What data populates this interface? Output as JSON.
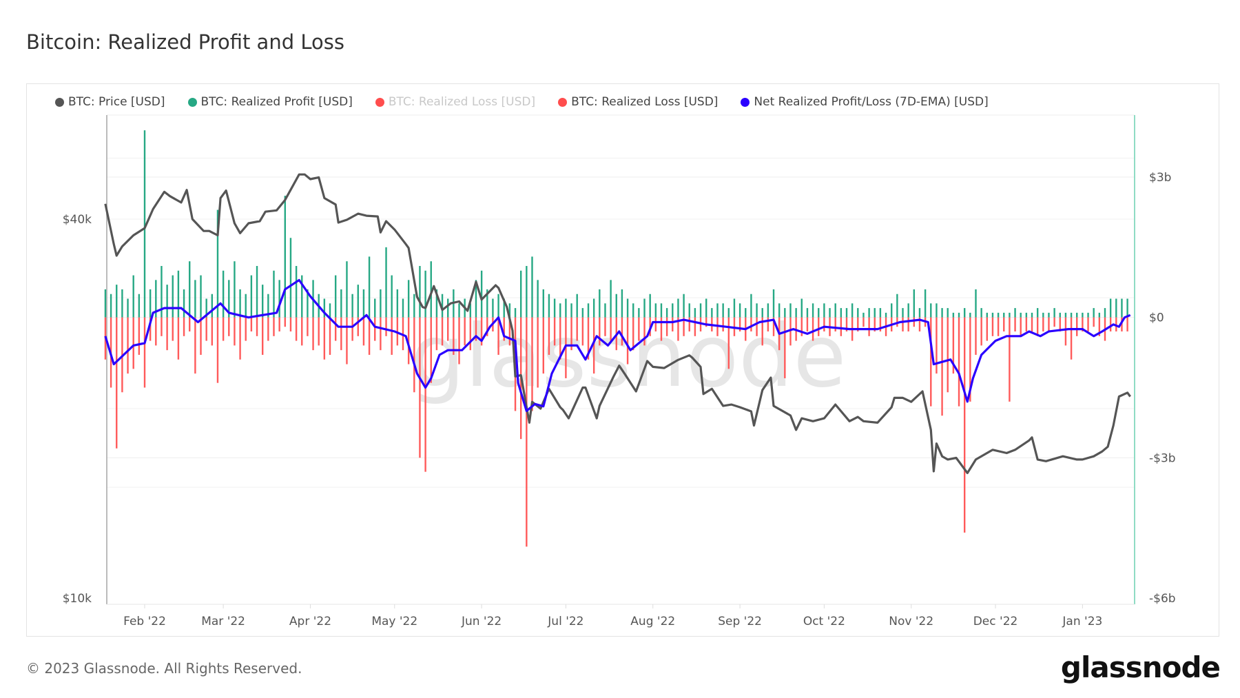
{
  "title": "Bitcoin: Realized Profit and Loss",
  "legend": [
    {
      "label": "BTC: Price [USD]",
      "color": "#555555",
      "enabled": true
    },
    {
      "label": "BTC: Realized Profit [USD]",
      "color": "#26a884",
      "enabled": true
    },
    {
      "label": "BTC: Realized Loss [USD]",
      "color": "#ff4d4d",
      "enabled": false
    },
    {
      "label": "BTC: Realized Loss [USD]",
      "color": "#ff4d4d",
      "enabled": true
    },
    {
      "label": "Net Realized Profit/Loss (7D-EMA) [USD]",
      "color": "#2a00ff",
      "enabled": true
    }
  ],
  "watermark": "glassnode",
  "footer": {
    "copyright": "© 2023 Glassnode. All Rights Reserved.",
    "logo": "glassnode"
  },
  "chart_data": {
    "type": "bar+line",
    "title": "Bitcoin: Realized Profit and Loss",
    "x_ticks": [
      {
        "date": "2022-02-01",
        "label": "Feb '22"
      },
      {
        "date": "2022-03-01",
        "label": "Mar '22"
      },
      {
        "date": "2022-04-01",
        "label": "Apr '22"
      },
      {
        "date": "2022-05-01",
        "label": "May '22"
      },
      {
        "date": "2022-06-01",
        "label": "Jun '22"
      },
      {
        "date": "2022-07-01",
        "label": "Jul '22"
      },
      {
        "date": "2022-08-01",
        "label": "Aug '22"
      },
      {
        "date": "2022-09-01",
        "label": "Sep '22"
      },
      {
        "date": "2022-10-01",
        "label": "Oct '22"
      },
      {
        "date": "2022-11-01",
        "label": "Nov '22"
      },
      {
        "date": "2022-12-01",
        "label": "Dec '22"
      },
      {
        "date": "2023-01-01",
        "label": "Jan '23"
      }
    ],
    "xlim": [
      "2022-01-18",
      "2023-01-19"
    ],
    "left_axis": {
      "scale": "log",
      "ticks": [
        {
          "value": 40000,
          "label": "$40k"
        },
        {
          "value": 10000,
          "label": "$10k"
        }
      ]
    },
    "right_axis": {
      "scale": "linear",
      "unit": "billion USD",
      "ylim": [
        -6,
        3
      ],
      "ticks": [
        {
          "value": 3,
          "label": "$3b"
        },
        {
          "value": 0,
          "label": "$0"
        },
        {
          "value": -3,
          "label": "-$3b"
        },
        {
          "value": -6,
          "label": "-$6b"
        }
      ]
    },
    "grid": true,
    "price": [
      [
        "2022-01-18",
        42300
      ],
      [
        "2022-01-21",
        36500
      ],
      [
        "2022-01-22",
        35000
      ],
      [
        "2022-01-24",
        36200
      ],
      [
        "2022-01-28",
        37700
      ],
      [
        "2022-02-01",
        38700
      ],
      [
        "2022-02-04",
        41500
      ],
      [
        "2022-02-08",
        44200
      ],
      [
        "2022-02-10",
        43500
      ],
      [
        "2022-02-14",
        42500
      ],
      [
        "2022-02-16",
        44500
      ],
      [
        "2022-02-18",
        40000
      ],
      [
        "2022-02-22",
        38300
      ],
      [
        "2022-02-24",
        38300
      ],
      [
        "2022-02-27",
        37700
      ],
      [
        "2022-02-28",
        43200
      ],
      [
        "2022-03-02",
        44400
      ],
      [
        "2022-03-05",
        39400
      ],
      [
        "2022-03-07",
        38000
      ],
      [
        "2022-03-10",
        39400
      ],
      [
        "2022-03-14",
        39700
      ],
      [
        "2022-03-16",
        41100
      ],
      [
        "2022-03-20",
        41300
      ],
      [
        "2022-03-23",
        42900
      ],
      [
        "2022-03-28",
        47100
      ],
      [
        "2022-03-30",
        47100
      ],
      [
        "2022-04-01",
        46300
      ],
      [
        "2022-04-04",
        46600
      ],
      [
        "2022-04-06",
        43200
      ],
      [
        "2022-04-10",
        42200
      ],
      [
        "2022-04-11",
        39500
      ],
      [
        "2022-04-14",
        39900
      ],
      [
        "2022-04-18",
        40800
      ],
      [
        "2022-04-21",
        40500
      ],
      [
        "2022-04-25",
        40400
      ],
      [
        "2022-04-26",
        38100
      ],
      [
        "2022-04-28",
        39700
      ],
      [
        "2022-05-01",
        38500
      ],
      [
        "2022-05-05",
        36500
      ],
      [
        "2022-05-06",
        36000
      ],
      [
        "2022-05-09",
        30100
      ],
      [
        "2022-05-11",
        29000
      ],
      [
        "2022-05-12",
        28900
      ],
      [
        "2022-05-15",
        31300
      ],
      [
        "2022-05-18",
        28700
      ],
      [
        "2022-05-21",
        29400
      ],
      [
        "2022-05-24",
        29600
      ],
      [
        "2022-05-27",
        28600
      ],
      [
        "2022-05-30",
        31800
      ],
      [
        "2022-06-01",
        29800
      ],
      [
        "2022-06-06",
        31400
      ],
      [
        "2022-06-07",
        31100
      ],
      [
        "2022-06-10",
        29000
      ],
      [
        "2022-06-12",
        26600
      ],
      [
        "2022-06-13",
        22500
      ],
      [
        "2022-06-15",
        22600
      ],
      [
        "2022-06-18",
        19000
      ],
      [
        "2022-06-19",
        20500
      ],
      [
        "2022-06-22",
        20000
      ],
      [
        "2022-06-25",
        21500
      ],
      [
        "2022-06-29",
        20100
      ],
      [
        "2022-06-30",
        19900
      ],
      [
        "2022-07-02",
        19300
      ],
      [
        "2022-07-07",
        21600
      ],
      [
        "2022-07-08",
        21600
      ],
      [
        "2022-07-12",
        19300
      ],
      [
        "2022-07-13",
        20200
      ],
      [
        "2022-07-18",
        22500
      ],
      [
        "2022-07-20",
        23400
      ],
      [
        "2022-07-22",
        22700
      ],
      [
        "2022-07-26",
        21300
      ],
      [
        "2022-07-30",
        23800
      ],
      [
        "2022-08-01",
        23300
      ],
      [
        "2022-08-05",
        23200
      ],
      [
        "2022-08-10",
        23900
      ],
      [
        "2022-08-14",
        24300
      ],
      [
        "2022-08-15",
        24100
      ],
      [
        "2022-08-18",
        23300
      ],
      [
        "2022-08-19",
        21100
      ],
      [
        "2022-08-22",
        21500
      ],
      [
        "2022-08-26",
        20200
      ],
      [
        "2022-08-29",
        20300
      ],
      [
        "2022-09-01",
        20100
      ],
      [
        "2022-09-05",
        19800
      ],
      [
        "2022-09-06",
        18800
      ],
      [
        "2022-09-09",
        21400
      ],
      [
        "2022-09-12",
        22400
      ],
      [
        "2022-09-13",
        20200
      ],
      [
        "2022-09-19",
        19500
      ],
      [
        "2022-09-21",
        18500
      ],
      [
        "2022-09-23",
        19300
      ],
      [
        "2022-09-27",
        19100
      ],
      [
        "2022-10-01",
        19300
      ],
      [
        "2022-10-05",
        20300
      ],
      [
        "2022-10-10",
        19100
      ],
      [
        "2022-10-13",
        19400
      ],
      [
        "2022-10-15",
        19100
      ],
      [
        "2022-10-20",
        19000
      ],
      [
        "2022-10-25",
        20100
      ],
      [
        "2022-10-26",
        20800
      ],
      [
        "2022-10-29",
        20800
      ],
      [
        "2022-11-01",
        20500
      ],
      [
        "2022-11-05",
        21300
      ],
      [
        "2022-11-08",
        18500
      ],
      [
        "2022-11-09",
        15900
      ],
      [
        "2022-11-10",
        17600
      ],
      [
        "2022-11-12",
        16800
      ],
      [
        "2022-11-14",
        16600
      ],
      [
        "2022-11-17",
        16700
      ],
      [
        "2022-11-21",
        15800
      ],
      [
        "2022-11-24",
        16600
      ],
      [
        "2022-11-30",
        17200
      ],
      [
        "2022-12-05",
        17000
      ],
      [
        "2022-12-08",
        17200
      ],
      [
        "2022-12-13",
        17800
      ],
      [
        "2022-12-14",
        18000
      ],
      [
        "2022-12-16",
        16600
      ],
      [
        "2022-12-19",
        16500
      ],
      [
        "2022-12-25",
        16800
      ],
      [
        "2022-12-30",
        16600
      ],
      [
        "2023-01-01",
        16600
      ],
      [
        "2023-01-05",
        16800
      ],
      [
        "2023-01-08",
        17100
      ],
      [
        "2023-01-10",
        17400
      ],
      [
        "2023-01-12",
        18800
      ],
      [
        "2023-01-14",
        20900
      ],
      [
        "2023-01-17",
        21200
      ],
      [
        "2023-01-18",
        20900
      ]
    ],
    "net_realized_ema": [
      [
        "2022-01-18",
        -0.4
      ],
      [
        "2022-01-21",
        -1.0
      ],
      [
        "2022-01-28",
        -0.6
      ],
      [
        "2022-02-01",
        -0.55
      ],
      [
        "2022-02-04",
        0.1
      ],
      [
        "2022-02-08",
        0.2
      ],
      [
        "2022-02-14",
        0.2
      ],
      [
        "2022-02-20",
        -0.1
      ],
      [
        "2022-02-28",
        0.3
      ],
      [
        "2022-03-03",
        0.1
      ],
      [
        "2022-03-10",
        0.0
      ],
      [
        "2022-03-20",
        0.1
      ],
      [
        "2022-03-23",
        0.6
      ],
      [
        "2022-03-28",
        0.8
      ],
      [
        "2022-04-01",
        0.45
      ],
      [
        "2022-04-06",
        0.1
      ],
      [
        "2022-04-11",
        -0.2
      ],
      [
        "2022-04-16",
        -0.2
      ],
      [
        "2022-04-21",
        0.05
      ],
      [
        "2022-04-24",
        -0.2
      ],
      [
        "2022-05-01",
        -0.3
      ],
      [
        "2022-05-05",
        -0.4
      ],
      [
        "2022-05-09",
        -1.2
      ],
      [
        "2022-05-12",
        -1.5
      ],
      [
        "2022-05-14",
        -1.3
      ],
      [
        "2022-05-17",
        -0.8
      ],
      [
        "2022-05-20",
        -0.7
      ],
      [
        "2022-05-25",
        -0.7
      ],
      [
        "2022-05-30",
        -0.4
      ],
      [
        "2022-06-01",
        -0.5
      ],
      [
        "2022-06-04",
        -0.2
      ],
      [
        "2022-06-07",
        0.0
      ],
      [
        "2022-06-09",
        -0.4
      ],
      [
        "2022-06-13",
        -0.5
      ],
      [
        "2022-06-14",
        -1.4
      ],
      [
        "2022-06-17",
        -2.0
      ],
      [
        "2022-06-20",
        -1.85
      ],
      [
        "2022-06-23",
        -1.9
      ],
      [
        "2022-06-26",
        -1.2
      ],
      [
        "2022-07-01",
        -0.6
      ],
      [
        "2022-07-05",
        -0.6
      ],
      [
        "2022-07-08",
        -0.9
      ],
      [
        "2022-07-12",
        -0.4
      ],
      [
        "2022-07-16",
        -0.6
      ],
      [
        "2022-07-20",
        -0.3
      ],
      [
        "2022-07-24",
        -0.7
      ],
      [
        "2022-07-26",
        -0.6
      ],
      [
        "2022-07-30",
        -0.4
      ],
      [
        "2022-08-01",
        -0.1
      ],
      [
        "2022-08-08",
        -0.1
      ],
      [
        "2022-08-12",
        -0.05
      ],
      [
        "2022-08-20",
        -0.15
      ],
      [
        "2022-08-27",
        -0.2
      ],
      [
        "2022-09-03",
        -0.25
      ],
      [
        "2022-09-08",
        -0.1
      ],
      [
        "2022-09-13",
        -0.05
      ],
      [
        "2022-09-15",
        -0.35
      ],
      [
        "2022-09-20",
        -0.25
      ],
      [
        "2022-09-25",
        -0.35
      ],
      [
        "2022-10-01",
        -0.2
      ],
      [
        "2022-10-10",
        -0.25
      ],
      [
        "2022-10-20",
        -0.25
      ],
      [
        "2022-10-28",
        -0.1
      ],
      [
        "2022-11-04",
        -0.05
      ],
      [
        "2022-11-07",
        -0.1
      ],
      [
        "2022-11-09",
        -1.0
      ],
      [
        "2022-11-12",
        -0.95
      ],
      [
        "2022-11-15",
        -0.9
      ],
      [
        "2022-11-18",
        -1.2
      ],
      [
        "2022-11-21",
        -1.8
      ],
      [
        "2022-11-23",
        -1.3
      ],
      [
        "2022-11-26",
        -0.8
      ],
      [
        "2022-12-01",
        -0.5
      ],
      [
        "2022-12-05",
        -0.4
      ],
      [
        "2022-12-10",
        -0.4
      ],
      [
        "2022-12-13",
        -0.3
      ],
      [
        "2022-12-17",
        -0.4
      ],
      [
        "2022-12-20",
        -0.3
      ],
      [
        "2022-12-27",
        -0.25
      ],
      [
        "2023-01-01",
        -0.25
      ],
      [
        "2023-01-05",
        -0.4
      ],
      [
        "2023-01-08",
        -0.3
      ],
      [
        "2023-01-12",
        -0.15
      ],
      [
        "2023-01-14",
        -0.2
      ],
      [
        "2023-01-16",
        0.0
      ],
      [
        "2023-01-18",
        0.05
      ]
    ],
    "bars_start": "2022-01-18",
    "bars_interval_days": 2,
    "realized_profit": [
      0.6,
      0.5,
      0.7,
      0.6,
      0.4,
      0.9,
      0.5,
      4.0,
      0.6,
      0.8,
      1.1,
      0.7,
      0.9,
      1.0,
      0.6,
      1.2,
      0.8,
      0.9,
      0.4,
      0.5,
      2.3,
      1.0,
      0.8,
      1.2,
      0.6,
      0.5,
      0.9,
      1.1,
      0.7,
      0.5,
      1.0,
      0.8,
      2.6,
      1.7,
      1.1,
      0.9,
      0.6,
      0.8,
      0.5,
      0.4,
      0.3,
      0.9,
      0.6,
      1.2,
      0.5,
      0.7,
      0.6,
      1.3,
      0.4,
      0.6,
      1.5,
      0.9,
      0.6,
      0.4,
      0.8,
      0.5,
      1.1,
      1.0,
      1.2,
      0.6,
      0.5,
      0.4,
      0.6,
      0.3,
      0.4,
      0.3,
      0.8,
      1.0,
      0.6,
      0.4,
      0.5,
      0.4,
      0.3,
      0.2,
      1.0,
      1.1,
      1.3,
      0.8,
      0.6,
      0.5,
      0.4,
      0.3,
      0.4,
      0.3,
      0.5,
      0.2,
      0.3,
      0.4,
      0.6,
      0.3,
      0.8,
      0.5,
      0.6,
      0.4,
      0.3,
      0.2,
      0.4,
      0.5,
      0.3,
      0.3,
      0.2,
      0.3,
      0.4,
      0.5,
      0.3,
      0.2,
      0.3,
      0.4,
      0.2,
      0.3,
      0.3,
      0.2,
      0.4,
      0.3,
      0.2,
      0.5,
      0.3,
      0.2,
      0.3,
      0.6,
      0.3,
      0.2,
      0.3,
      0.2,
      0.4,
      0.2,
      0.3,
      0.2,
      0.3,
      0.2,
      0.3,
      0.2,
      0.2,
      0.3,
      0.2,
      0.1,
      0.2,
      0.2,
      0.2,
      0.1,
      0.3,
      0.5,
      0.2,
      0.3,
      0.6,
      0.2,
      0.6,
      0.3,
      0.3,
      0.2,
      0.2,
      0.1,
      0.1,
      0.2,
      0.1,
      0.6,
      0.2,
      0.1,
      0.1,
      0.1,
      0.1,
      0.1,
      0.2,
      0.1,
      0.1,
      0.1,
      0.2,
      0.1,
      0.1,
      0.2,
      0.1,
      0.1,
      0.1,
      0.1,
      0.1,
      0.1,
      0.2,
      0.1,
      0.2,
      0.4,
      0.4,
      0.4,
      0.4
    ],
    "realized_loss": [
      -0.9,
      -1.5,
      -2.8,
      -1.6,
      -1.2,
      -1.1,
      -0.8,
      -1.5,
      -0.5,
      -0.6,
      -0.4,
      -0.7,
      -0.5,
      -0.9,
      -0.4,
      -0.3,
      -1.2,
      -0.8,
      -0.5,
      -0.6,
      -1.4,
      -0.5,
      -0.4,
      -0.6,
      -0.9,
      -0.5,
      -0.3,
      -0.4,
      -0.8,
      -0.5,
      -0.4,
      -0.3,
      -0.2,
      -0.3,
      -0.5,
      -0.6,
      -0.4,
      -0.7,
      -0.6,
      -0.9,
      -0.8,
      -0.5,
      -0.7,
      -1.0,
      -0.5,
      -0.4,
      -0.6,
      -0.8,
      -0.5,
      -0.7,
      -0.4,
      -0.8,
      -0.6,
      -0.7,
      -1.0,
      -1.6,
      -3.0,
      -3.3,
      -1.4,
      -0.7,
      -0.6,
      -0.5,
      -0.8,
      -1.0,
      -0.6,
      -0.7,
      -0.5,
      -0.6,
      -0.4,
      -0.3,
      -0.8,
      -0.5,
      -0.6,
      -2.0,
      -2.6,
      -4.9,
      -2.0,
      -1.5,
      -1.2,
      -0.8,
      -0.6,
      -0.9,
      -1.3,
      -0.7,
      -0.5,
      -0.6,
      -0.9,
      -1.2,
      -0.6,
      -0.4,
      -0.5,
      -0.7,
      -0.6,
      -1.0,
      -0.7,
      -0.5,
      -0.6,
      -0.4,
      -0.3,
      -0.5,
      -0.4,
      -0.3,
      -0.5,
      -0.4,
      -0.3,
      -0.4,
      -0.3,
      -0.2,
      -0.3,
      -0.4,
      -0.3,
      -1.1,
      -0.4,
      -0.3,
      -0.5,
      -0.3,
      -0.4,
      -0.6,
      -0.3,
      -0.4,
      -0.7,
      -1.3,
      -0.6,
      -0.5,
      -0.4,
      -0.3,
      -0.5,
      -0.4,
      -0.3,
      -0.4,
      -0.3,
      -0.4,
      -0.3,
      -0.5,
      -0.3,
      -0.2,
      -0.4,
      -0.3,
      -0.3,
      -0.4,
      -0.3,
      -0.2,
      -0.3,
      -0.3,
      -0.2,
      -0.3,
      -0.2,
      -1.9,
      -1.2,
      -2.1,
      -1.6,
      -1.2,
      -1.9,
      -4.6,
      -1.8,
      -0.8,
      -0.6,
      -0.5,
      -0.4,
      -0.4,
      -0.3,
      -1.8,
      -0.3,
      -0.4,
      -0.3,
      -0.3,
      -0.4,
      -0.3,
      -0.3,
      -0.2,
      -0.3,
      -0.6,
      -0.9,
      -0.4,
      -0.3,
      -0.3,
      -0.2,
      -0.4,
      -0.5,
      -0.3,
      -0.3,
      -0.3,
      -0.3
    ]
  }
}
